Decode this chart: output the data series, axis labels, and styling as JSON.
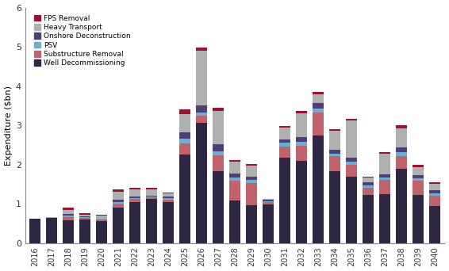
{
  "years": [
    "2016",
    "2017",
    "2018",
    "2019",
    "2020",
    "2021",
    "2022",
    "2023",
    "2024",
    "2025",
    "2026",
    "2027",
    "2028",
    "2029",
    "2030",
    "2031",
    "2032",
    "2033",
    "2034",
    "2035",
    "2036",
    "2037",
    "2038",
    "2039",
    "2040"
  ],
  "categories": [
    "Well Decommissioning",
    "Substructure Removal",
    "PSV",
    "Onshore Deconstruction",
    "Heavy Transport",
    "FPS Removal"
  ],
  "colors": [
    "#2d2645",
    "#c0626a",
    "#6aaed6",
    "#4e3f7a",
    "#b0b0b0",
    "#a01030"
  ],
  "data": {
    "Well Decommissioning": [
      0.62,
      0.65,
      0.57,
      0.6,
      0.55,
      0.9,
      1.05,
      1.12,
      1.05,
      2.25,
      3.07,
      1.83,
      1.08,
      0.97,
      0.98,
      2.18,
      2.1,
      2.75,
      1.83,
      1.7,
      1.22,
      1.25,
      1.9,
      1.23,
      0.95
    ],
    "Substructure Removal": [
      0.0,
      0.0,
      0.1,
      0.04,
      0.04,
      0.1,
      0.07,
      0.04,
      0.06,
      0.28,
      0.18,
      0.4,
      0.5,
      0.55,
      0.06,
      0.28,
      0.38,
      0.58,
      0.38,
      0.3,
      0.18,
      0.35,
      0.32,
      0.35,
      0.26
    ],
    "PSV": [
      0.0,
      0.0,
      0.04,
      0.02,
      0.02,
      0.04,
      0.03,
      0.02,
      0.04,
      0.12,
      0.08,
      0.1,
      0.1,
      0.09,
      0.03,
      0.09,
      0.09,
      0.09,
      0.07,
      0.07,
      0.06,
      0.07,
      0.09,
      0.07,
      0.06
    ],
    "Onshore Deconstruction": [
      0.0,
      0.0,
      0.04,
      0.02,
      0.02,
      0.07,
      0.04,
      0.03,
      0.04,
      0.18,
      0.18,
      0.18,
      0.1,
      0.08,
      0.03,
      0.09,
      0.13,
      0.15,
      0.1,
      0.1,
      0.08,
      0.09,
      0.13,
      0.09,
      0.08
    ],
    "Heavy Transport": [
      0.0,
      0.02,
      0.1,
      0.04,
      0.08,
      0.2,
      0.17,
      0.15,
      0.07,
      0.45,
      1.4,
      0.85,
      0.3,
      0.28,
      0.02,
      0.3,
      0.6,
      0.22,
      0.48,
      0.95,
      0.12,
      0.52,
      0.48,
      0.2,
      0.15
    ],
    "FPS Removal": [
      0.0,
      0.0,
      0.05,
      0.04,
      0.02,
      0.05,
      0.04,
      0.04,
      0.02,
      0.12,
      0.07,
      0.08,
      0.04,
      0.04,
      0.01,
      0.04,
      0.07,
      0.07,
      0.04,
      0.04,
      0.04,
      0.03,
      0.08,
      0.06,
      0.04
    ]
  },
  "ylabel": "Expenditure ($bn)",
  "ylim": [
    0,
    6
  ],
  "yticks": [
    0,
    1,
    2,
    3,
    4,
    5,
    6
  ],
  "legend_order": [
    "FPS Removal",
    "Heavy Transport",
    "Onshore Deconstruction",
    "PSV",
    "Substructure Removal",
    "Well Decommissioning"
  ],
  "background_color": "#ffffff",
  "bar_width": 0.65
}
